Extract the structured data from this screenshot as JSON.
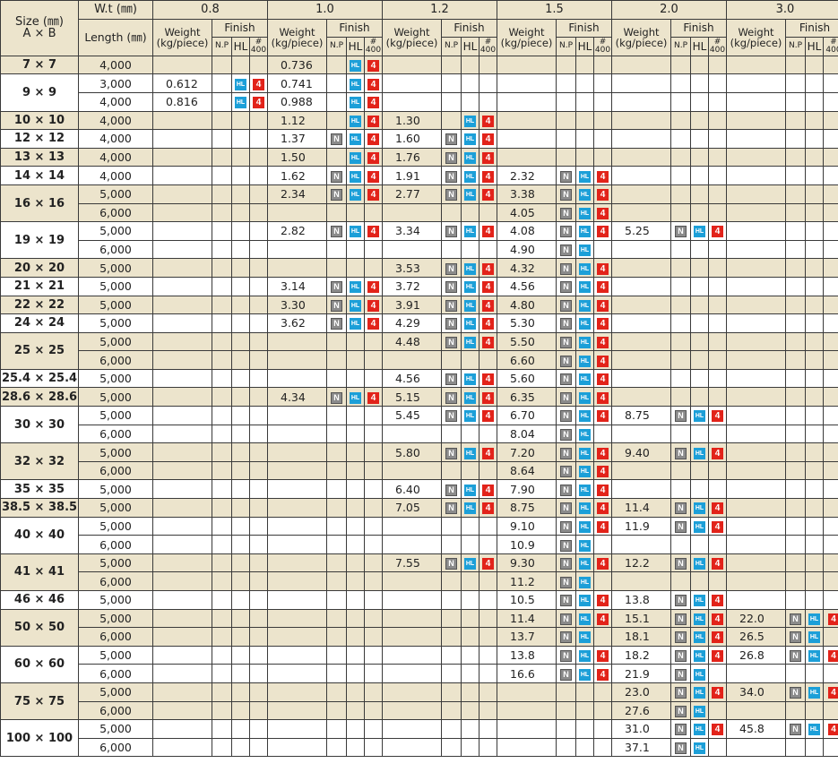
{
  "header": {
    "size_label": "Size (㎜)",
    "size_axes": "A × B",
    "wt_label": "W.t (㎜)",
    "length_label": "Length (㎜)",
    "weight_label": "Weight",
    "weight_unit": "(kg/piece)",
    "finish_label": "Finish",
    "np_label": "N.P",
    "hl_label": "HL",
    "no400_hash": "#",
    "no400_num": "400",
    "thicknesses": [
      "0.8",
      "1.0",
      "1.2",
      "1.5",
      "2.0",
      "3.0"
    ]
  },
  "badges": {
    "N": "N",
    "H": "HL",
    "F": "4"
  },
  "colors": {
    "shade": "#ece4cc",
    "np_badge": "#8b8b8b",
    "hl_badge": "#1c9fd8",
    "no400_badge": "#e2231a"
  },
  "rows": [
    {
      "size": "7 × 7",
      "shade": true,
      "span": 1,
      "len": "4,000",
      "c": [
        null,
        [
          "0.736",
          "HF"
        ],
        null,
        null,
        null,
        null
      ]
    },
    {
      "size": "9 × 9",
      "shade": false,
      "span": 2,
      "len": "3,000",
      "c": [
        [
          "0.612",
          "HF"
        ],
        [
          "0.741",
          "HF"
        ],
        null,
        null,
        null,
        null
      ]
    },
    {
      "len": "4,000",
      "c": [
        [
          "0.816",
          "HF"
        ],
        [
          "0.988",
          "HF"
        ],
        null,
        null,
        null,
        null
      ]
    },
    {
      "size": "10 × 10",
      "shade": true,
      "span": 1,
      "len": "4,000",
      "c": [
        null,
        [
          "1.12",
          "HF"
        ],
        [
          "1.30",
          "HF"
        ],
        null,
        null,
        null
      ]
    },
    {
      "size": "12 × 12",
      "shade": false,
      "span": 1,
      "len": "4,000",
      "c": [
        null,
        [
          "1.37",
          "NHF"
        ],
        [
          "1.60",
          "NHF"
        ],
        null,
        null,
        null
      ]
    },
    {
      "size": "13 × 13",
      "shade": true,
      "span": 1,
      "len": "4,000",
      "c": [
        null,
        [
          "1.50",
          "HF"
        ],
        [
          "1.76",
          "NHF"
        ],
        null,
        null,
        null
      ]
    },
    {
      "size": "14 × 14",
      "shade": false,
      "span": 1,
      "len": "4,000",
      "c": [
        null,
        [
          "1.62",
          "NHF"
        ],
        [
          "1.91",
          "NHF"
        ],
        [
          "2.32",
          "NHF"
        ],
        null,
        null
      ]
    },
    {
      "size": "16 × 16",
      "shade": true,
      "span": 2,
      "len": "5,000",
      "c": [
        null,
        [
          "2.34",
          "NHF"
        ],
        [
          "2.77",
          "NHF"
        ],
        [
          "3.38",
          "NHF"
        ],
        null,
        null
      ]
    },
    {
      "len": "6,000",
      "c": [
        null,
        null,
        null,
        [
          "4.05",
          "NHF"
        ],
        null,
        null
      ]
    },
    {
      "size": "19 × 19",
      "shade": false,
      "span": 2,
      "len": "5,000",
      "c": [
        null,
        [
          "2.82",
          "NHF"
        ],
        [
          "3.34",
          "NHF"
        ],
        [
          "4.08",
          "NHF"
        ],
        [
          "5.25",
          "NHF"
        ],
        null
      ]
    },
    {
      "len": "6,000",
      "c": [
        null,
        null,
        null,
        [
          "4.90",
          "NH"
        ],
        null,
        null
      ]
    },
    {
      "size": "20 × 20",
      "shade": true,
      "span": 1,
      "len": "5,000",
      "c": [
        null,
        null,
        [
          "3.53",
          "NHF"
        ],
        [
          "4.32",
          "NHF"
        ],
        null,
        null
      ]
    },
    {
      "size": "21 × 21",
      "shade": false,
      "span": 1,
      "len": "5,000",
      "c": [
        null,
        [
          "3.14",
          "NHF"
        ],
        [
          "3.72",
          "NHF"
        ],
        [
          "4.56",
          "NHF"
        ],
        null,
        null
      ]
    },
    {
      "size": "22 × 22",
      "shade": true,
      "span": 1,
      "len": "5,000",
      "c": [
        null,
        [
          "3.30",
          "NHF"
        ],
        [
          "3.91",
          "NHF"
        ],
        [
          "4.80",
          "NHF"
        ],
        null,
        null
      ]
    },
    {
      "size": "24 × 24",
      "shade": false,
      "span": 1,
      "len": "5,000",
      "c": [
        null,
        [
          "3.62",
          "NHF"
        ],
        [
          "4.29",
          "NHF"
        ],
        [
          "5.30",
          "NHF"
        ],
        null,
        null
      ]
    },
    {
      "size": "25 × 25",
      "shade": true,
      "span": 2,
      "len": "5,000",
      "c": [
        null,
        null,
        [
          "4.48",
          "NHF"
        ],
        [
          "5.50",
          "NHF"
        ],
        null,
        null
      ]
    },
    {
      "len": "6,000",
      "c": [
        null,
        null,
        null,
        [
          "6.60",
          "NHF"
        ],
        null,
        null
      ]
    },
    {
      "size": "25.4 × 25.4",
      "shade": false,
      "span": 1,
      "len": "5,000",
      "c": [
        null,
        null,
        [
          "4.56",
          "NHF"
        ],
        [
          "5.60",
          "NHF"
        ],
        null,
        null
      ]
    },
    {
      "size": "28.6 × 28.6",
      "shade": true,
      "span": 1,
      "len": "5,000",
      "c": [
        null,
        [
          "4.34",
          "NHF"
        ],
        [
          "5.15",
          "NHF"
        ],
        [
          "6.35",
          "NHF"
        ],
        null,
        null
      ]
    },
    {
      "size": "30 × 30",
      "shade": false,
      "span": 2,
      "len": "5,000",
      "c": [
        null,
        null,
        [
          "5.45",
          "NHF"
        ],
        [
          "6.70",
          "NHF"
        ],
        [
          "8.75",
          "NHF"
        ],
        null
      ]
    },
    {
      "len": "6,000",
      "c": [
        null,
        null,
        null,
        [
          "8.04",
          "NH"
        ],
        null,
        null
      ]
    },
    {
      "size": "32 × 32",
      "shade": true,
      "span": 2,
      "len": "5,000",
      "c": [
        null,
        null,
        [
          "5.80",
          "NHF"
        ],
        [
          "7.20",
          "NHF"
        ],
        [
          "9.40",
          "NHF"
        ],
        null
      ]
    },
    {
      "len": "6,000",
      "c": [
        null,
        null,
        null,
        [
          "8.64",
          "NHF"
        ],
        null,
        null
      ]
    },
    {
      "size": "35 × 35",
      "shade": false,
      "span": 1,
      "len": "5,000",
      "c": [
        null,
        null,
        [
          "6.40",
          "NHF"
        ],
        [
          "7.90",
          "NHF"
        ],
        null,
        null
      ]
    },
    {
      "size": "38.5 × 38.5",
      "shade": true,
      "span": 1,
      "len": "5,000",
      "c": [
        null,
        null,
        [
          "7.05",
          "NHF"
        ],
        [
          "8.75",
          "NHF"
        ],
        [
          "11.4",
          "NHF"
        ],
        null
      ]
    },
    {
      "size": "40 × 40",
      "shade": false,
      "span": 2,
      "len": "5,000",
      "c": [
        null,
        null,
        null,
        [
          "9.10",
          "NHF"
        ],
        [
          "11.9",
          "NHF"
        ],
        null
      ]
    },
    {
      "len": "6,000",
      "c": [
        null,
        null,
        null,
        [
          "10.9",
          "NH"
        ],
        null,
        null
      ]
    },
    {
      "size": "41 × 41",
      "shade": true,
      "span": 2,
      "len": "5,000",
      "c": [
        null,
        null,
        [
          "7.55",
          "NHF"
        ],
        [
          "9.30",
          "NHF"
        ],
        [
          "12.2",
          "NHF"
        ],
        null
      ]
    },
    {
      "len": "6,000",
      "c": [
        null,
        null,
        null,
        [
          "11.2",
          "NH"
        ],
        null,
        null
      ]
    },
    {
      "size": "46 × 46",
      "shade": false,
      "span": 1,
      "len": "5,000",
      "c": [
        null,
        null,
        null,
        [
          "10.5",
          "NHF"
        ],
        [
          "13.8",
          "NHF"
        ],
        null
      ]
    },
    {
      "size": "50 × 50",
      "shade": true,
      "span": 2,
      "len": "5,000",
      "c": [
        null,
        null,
        null,
        [
          "11.4",
          "NHF"
        ],
        [
          "15.1",
          "NHF"
        ],
        [
          "22.0",
          "NHF"
        ]
      ]
    },
    {
      "len": "6,000",
      "c": [
        null,
        null,
        null,
        [
          "13.7",
          "NH"
        ],
        [
          "18.1",
          "NHF"
        ],
        [
          "26.5",
          "NH"
        ]
      ]
    },
    {
      "size": "60 × 60",
      "shade": false,
      "span": 2,
      "len": "5,000",
      "c": [
        null,
        null,
        null,
        [
          "13.8",
          "NHF"
        ],
        [
          "18.2",
          "NHF"
        ],
        [
          "26.8",
          "NHF"
        ]
      ]
    },
    {
      "len": "6,000",
      "c": [
        null,
        null,
        null,
        [
          "16.6",
          "NHF"
        ],
        [
          "21.9",
          "NH"
        ],
        null
      ]
    },
    {
      "size": "75 × 75",
      "shade": true,
      "span": 2,
      "len": "5,000",
      "c": [
        null,
        null,
        null,
        null,
        [
          "23.0",
          "NHF"
        ],
        [
          "34.0",
          "NHF"
        ]
      ]
    },
    {
      "len": "6,000",
      "c": [
        null,
        null,
        null,
        null,
        [
          "27.6",
          "NH"
        ],
        null
      ]
    },
    {
      "size": "100 × 100",
      "shade": false,
      "span": 2,
      "len": "5,000",
      "c": [
        null,
        null,
        null,
        null,
        [
          "31.0",
          "NHF"
        ],
        [
          "45.8",
          "NHF"
        ]
      ]
    },
    {
      "len": "6,000",
      "c": [
        null,
        null,
        null,
        null,
        [
          "37.1",
          "NH"
        ],
        null
      ]
    }
  ]
}
